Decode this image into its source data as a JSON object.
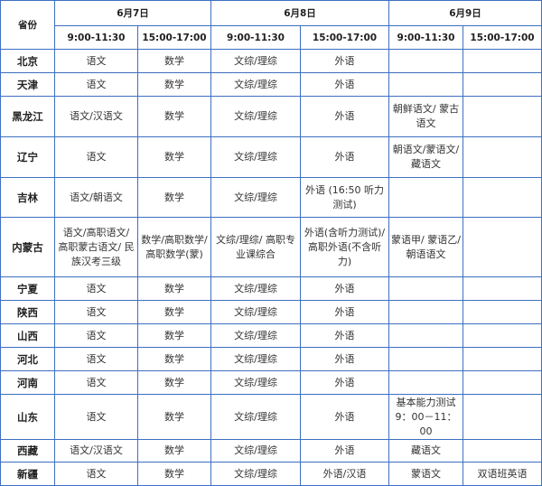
{
  "header": {
    "province_label": "省份",
    "days": [
      "6月7日",
      "6月8日",
      "6月9日"
    ],
    "slots": [
      "9:00-11:30",
      "15:00-17:00",
      "9:00-11:30",
      "15:00-17:00",
      "9:00-11:30",
      "15:00-17:00"
    ]
  },
  "rows": [
    {
      "province": "北京",
      "cells": [
        "语文",
        "数学",
        "文综/理综",
        "外语",
        "",
        ""
      ]
    },
    {
      "province": "天津",
      "cells": [
        "语文",
        "数学",
        "文综/理综",
        "外语",
        "",
        ""
      ]
    },
    {
      "province": "黑龙江",
      "cells": [
        "语文/汉语文",
        "数学",
        "文综/理综",
        "外语",
        "朝鲜语文/ 蒙古语文",
        ""
      ]
    },
    {
      "province": "辽宁",
      "cells": [
        "语文",
        "数学",
        "文综/理综",
        "外语",
        "朝语文/蒙语文/藏语文",
        ""
      ]
    },
    {
      "province": "吉林",
      "cells": [
        "语文/朝语文",
        "数学",
        "文综/理综",
        "外语 (16:50 听力测试)",
        "",
        ""
      ]
    },
    {
      "province": "内蒙古",
      "cells": [
        "语文/高职语文/ 高职蒙古语文/ 民族汉考三级",
        "数学/高职数学/高职数学(蒙)",
        "文综/理综/ 高职专业课综合",
        "外语(含听力测试)/高职外语(不含听力)",
        "蒙语甲/ 蒙语乙/朝语语文",
        ""
      ]
    },
    {
      "province": "宁夏",
      "cells": [
        "语文",
        "数学",
        "文综/理综",
        "外语",
        "",
        ""
      ]
    },
    {
      "province": "陕西",
      "cells": [
        "语文",
        "数学",
        "文综/理综",
        "外语",
        "",
        ""
      ]
    },
    {
      "province": "山西",
      "cells": [
        "语文",
        "数学",
        "文综/理综",
        "外语",
        "",
        ""
      ]
    },
    {
      "province": "河北",
      "cells": [
        "语文",
        "数学",
        "文综/理综",
        "外语",
        "",
        ""
      ]
    },
    {
      "province": "河南",
      "cells": [
        "语文",
        "数学",
        "文综/理综",
        "外语",
        "",
        ""
      ]
    },
    {
      "province": "山东",
      "cells": [
        "语文",
        "数学",
        "文综/理综",
        "外语",
        "基本能力测试9：00－11：00",
        ""
      ]
    },
    {
      "province": "西藏",
      "cells": [
        "语文/汉语文",
        "数学",
        "文综/理综",
        "外语",
        "藏语文",
        ""
      ]
    },
    {
      "province": "新疆",
      "cells": [
        "语文",
        "数学",
        "文综/理综",
        "外语/汉语",
        "蒙语文",
        "双语班英语"
      ]
    }
  ]
}
